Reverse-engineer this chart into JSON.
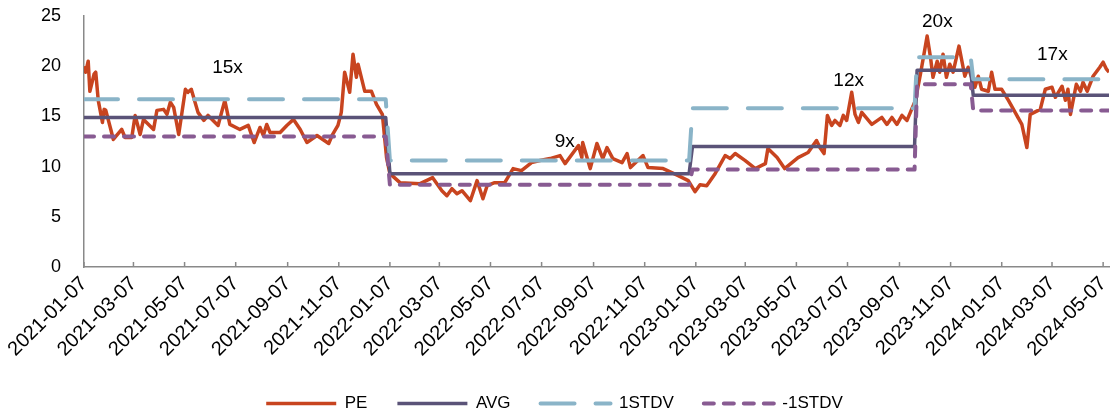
{
  "chart_data": {
    "type": "line",
    "xlim": [
      "2021-01-07",
      "2024-05-14"
    ],
    "xticks": [
      "2021-01-07",
      "2021-03-07",
      "2021-05-07",
      "2021-07-07",
      "2021-09-07",
      "2021-11-07",
      "2022-01-07",
      "2022-03-07",
      "2022-05-07",
      "2022-07-07",
      "2022-09-07",
      "2022-11-07",
      "2023-01-07",
      "2023-03-07",
      "2023-05-07",
      "2023-07-07",
      "2023-09-07",
      "2023-11-07",
      "2024-01-07",
      "2024-03-07",
      "2024-05-07"
    ],
    "ylim": [
      0,
      25
    ],
    "yticks": [
      0,
      5,
      10,
      15,
      20,
      25
    ],
    "legend": "bottom",
    "annotations": [
      "15x",
      "9x",
      "12x",
      "20x",
      "17x"
    ],
    "series": [
      {
        "name": "PE",
        "color": "#c8441f",
        "line_style": "solid",
        "x": [
          "2021-01-07",
          "2021-01-09",
          "2021-01-12",
          "2021-01-14",
          "2021-01-19",
          "2021-01-21",
          "2021-01-24",
          "2021-01-29",
          "2021-01-31",
          "2021-02-02",
          "2021-02-08",
          "2021-02-11",
          "2021-02-21",
          "2021-02-25",
          "2021-03-05",
          "2021-03-09",
          "2021-03-15",
          "2021-03-19",
          "2021-03-31",
          "2021-04-04",
          "2021-04-12",
          "2021-04-16",
          "2021-04-20",
          "2021-04-24",
          "2021-04-30",
          "2021-05-08",
          "2021-05-11",
          "2021-05-15",
          "2021-05-23",
          "2021-05-30",
          "2021-06-04",
          "2021-06-16",
          "2021-06-24",
          "2021-06-30",
          "2021-07-12",
          "2021-07-22",
          "2021-07-29",
          "2021-08-05",
          "2021-08-09",
          "2021-08-13",
          "2021-08-17",
          "2021-08-29",
          "2021-09-06",
          "2021-09-14",
          "2021-09-22",
          "2021-09-30",
          "2021-10-12",
          "2021-10-26",
          "2021-10-30",
          "2021-11-06",
          "2021-11-10",
          "2021-11-14",
          "2021-11-20",
          "2021-11-24",
          "2021-11-28",
          "2021-11-30",
          "2021-12-08",
          "2021-12-16",
          "2021-12-22",
          "2021-12-29",
          "2022-01-03",
          "2022-01-07",
          "2022-01-19",
          "2022-02-12",
          "2022-02-27",
          "2022-03-10",
          "2022-03-16",
          "2022-03-22",
          "2022-03-28",
          "2022-04-03",
          "2022-04-13",
          "2022-04-21",
          "2022-04-28",
          "2022-05-03",
          "2022-05-12",
          "2022-05-24",
          "2022-06-03",
          "2022-06-13",
          "2022-06-25",
          "2022-07-05",
          "2022-07-17",
          "2022-07-29",
          "2022-08-04",
          "2022-08-20",
          "2022-08-24",
          "2022-08-25",
          "2022-09-03",
          "2022-09-11",
          "2022-09-18",
          "2022-09-23",
          "2022-09-30",
          "2022-10-11",
          "2022-10-17",
          "2022-10-21",
          "2022-11-05",
          "2022-11-11",
          "2022-11-29",
          "2022-12-17",
          "2022-12-29",
          "2023-01-06",
          "2023-01-12",
          "2023-01-20",
          "2023-01-30",
          "2023-02-11",
          "2023-02-17",
          "2023-02-23",
          "2023-03-07",
          "2023-03-19",
          "2023-03-31",
          "2023-04-03",
          "2023-04-14",
          "2023-04-23",
          "2023-05-09",
          "2023-05-21",
          "2023-05-31",
          "2023-06-04",
          "2023-06-09",
          "2023-06-13",
          "2023-06-18",
          "2023-06-22",
          "2023-06-28",
          "2023-07-02",
          "2023-07-06",
          "2023-07-12",
          "2023-07-16",
          "2023-07-20",
          "2023-07-24",
          "2023-08-05",
          "2023-08-17",
          "2023-08-23",
          "2023-08-29",
          "2023-09-04",
          "2023-09-10",
          "2023-09-16",
          "2023-09-20",
          "2023-09-26",
          "2023-10-02",
          "2023-10-10",
          "2023-10-14",
          "2023-10-17",
          "2023-10-22",
          "2023-10-25",
          "2023-10-29",
          "2023-11-02",
          "2023-11-06",
          "2023-11-10",
          "2023-11-17",
          "2023-11-24",
          "2023-11-28",
          "2023-12-06",
          "2023-12-10",
          "2023-12-14",
          "2023-12-22",
          "2023-12-26",
          "2023-12-30",
          "2024-01-07",
          "2024-01-15",
          "2024-01-23",
          "2024-01-31",
          "2024-02-06",
          "2024-02-10",
          "2024-02-22",
          "2024-02-28",
          "2024-03-07",
          "2024-03-11",
          "2024-03-19",
          "2024-03-23",
          "2024-03-26",
          "2024-03-29",
          "2024-04-05",
          "2024-04-10",
          "2024-04-13",
          "2024-04-18",
          "2024-04-25",
          "2024-05-03",
          "2024-05-07",
          "2024-05-11",
          "2024-05-14"
        ],
        "values": [
          20.0,
          19.4,
          20.5,
          17.5,
          19.2,
          19.4,
          16.6,
          14.4,
          15.7,
          15.6,
          13.7,
          12.7,
          13.7,
          12.9,
          12.9,
          15.1,
          13.2,
          14.7,
          13.7,
          15.6,
          15.7,
          15.2,
          16.4,
          15.9,
          13.2,
          17.7,
          17.4,
          17.7,
          15.4,
          14.6,
          15.1,
          14.1,
          16.6,
          14.2,
          13.7,
          14.1,
          12.4,
          13.9,
          13.1,
          14.2,
          13.4,
          13.4,
          14.1,
          14.7,
          13.7,
          12.4,
          13.1,
          12.3,
          13.1,
          14.1,
          15.4,
          19.4,
          17.4,
          21.2,
          18.9,
          20.2,
          17.5,
          17.5,
          16.2,
          15.2,
          10.9,
          9.3,
          8.4,
          8.3,
          8.9,
          7.6,
          7.1,
          7.8,
          7.3,
          7.6,
          6.6,
          8.6,
          6.8,
          8.1,
          8.4,
          8.4,
          9.8,
          9.6,
          10.4,
          10.6,
          10.8,
          11.1,
          10.3,
          12.1,
          10.9,
          12.4,
          9.8,
          12.3,
          10.8,
          11.9,
          10.8,
          10.4,
          11.3,
          9.9,
          11.1,
          9.9,
          9.8,
          9.1,
          8.6,
          7.5,
          8.2,
          8.1,
          9.3,
          11.1,
          10.8,
          11.3,
          10.6,
          9.8,
          10.3,
          11.8,
          10.9,
          9.8,
          10.9,
          11.4,
          12.6,
          11.9,
          11.3,
          15.1,
          14.1,
          14.6,
          14.1,
          15.1,
          14.6,
          17.4,
          15.2,
          14.4,
          15.4,
          14.2,
          14.9,
          14.2,
          14.9,
          14.2,
          15.1,
          14.6,
          15.4,
          16.6,
          19.2,
          23.0,
          20.9,
          18.9,
          20.5,
          19.4,
          21.2,
          18.9,
          20.2,
          19.4,
          22.0,
          19.0,
          19.9,
          17.9,
          19.0,
          17.7,
          17.5,
          19.4,
          17.7,
          17.7,
          16.6,
          15.4,
          14.2,
          11.9,
          15.2,
          15.7,
          17.7,
          17.9,
          16.9,
          18.0,
          16.6,
          17.7,
          15.2,
          18.2,
          17.5,
          18.4,
          17.5,
          19.0,
          19.9,
          20.4,
          19.7,
          19.4
        ]
      },
      {
        "name": "AVG",
        "color": "#5a5378",
        "line_style": "solid",
        "x": [
          "2021-01-07",
          "2022-01-02",
          "2022-01-07",
          "2022-12-30",
          "2023-01-03",
          "2023-09-25",
          "2023-09-28",
          "2023-12-01",
          "2023-12-04",
          "2024-05-14"
        ],
        "values": [
          14.9,
          14.9,
          9.3,
          9.3,
          12.0,
          12.0,
          19.6,
          19.6,
          17.1,
          17.1
        ]
      },
      {
        "name": "1STDV",
        "color": "#8ab4c8",
        "line_style": "dashed",
        "x": [
          "2021-01-07",
          "2022-01-02",
          "2022-01-07",
          "2022-12-30",
          "2023-01-03",
          "2023-09-25",
          "2023-09-28",
          "2023-12-01",
          "2023-12-04",
          "2024-05-14"
        ],
        "values": [
          16.7,
          16.7,
          10.6,
          10.6,
          15.8,
          15.8,
          20.9,
          20.9,
          18.7,
          18.7
        ]
      },
      {
        "name": "-1STDV",
        "color": "#885b92",
        "line_style": "dashed",
        "x": [
          "2021-01-07",
          "2022-01-02",
          "2022-01-07",
          "2022-12-30",
          "2023-01-03",
          "2023-09-25",
          "2023-09-28",
          "2023-12-01",
          "2023-12-04",
          "2024-05-14"
        ],
        "values": [
          13.0,
          13.0,
          8.2,
          8.2,
          9.7,
          9.7,
          18.2,
          18.2,
          15.6,
          15.6
        ]
      }
    ]
  }
}
